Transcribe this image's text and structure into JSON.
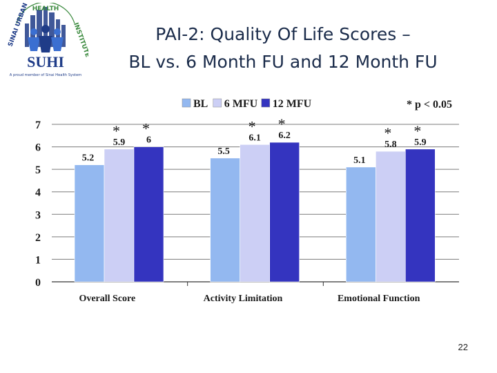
{
  "slide": {
    "title_line1": "PAI-2: Quality Of Life Scores –",
    "title_line2": "BL vs. 6 Month FU and 12 Month FU",
    "page_number": "22"
  },
  "logo": {
    "arc_text_left": "SINAI URBAN",
    "arc_text_top": "HEALTH",
    "arc_text_right": "INSTITUTE",
    "wordmark": "SUHI",
    "tagline": "A proud member of Sinai Health System",
    "colors": {
      "navy": "#1f3c88",
      "blue": "#3b6fd1",
      "green": "#3b8a3e"
    }
  },
  "chart_data": {
    "type": "bar",
    "categories": [
      "Overall Score",
      "Activity Limitation",
      "Emotional Function"
    ],
    "series": [
      {
        "name": "BL",
        "values": [
          5.2,
          5.5,
          5.1
        ],
        "labels": [
          "5.2",
          "5.5",
          "5.1"
        ],
        "color": "#93b8f0"
      },
      {
        "name": "6 MFU",
        "values": [
          5.9,
          6.1,
          5.8
        ],
        "labels": [
          "5.9",
          "6.1",
          "5.8"
        ],
        "color": "#cccff5"
      },
      {
        "name": "12 MFU",
        "values": [
          6,
          6.2,
          5.9
        ],
        "labels": [
          "6",
          "6.2",
          "5.9"
        ],
        "color": "#3434bf"
      }
    ],
    "significance": [
      [
        false,
        true,
        true
      ],
      [
        false,
        true,
        true
      ],
      [
        false,
        true,
        true
      ]
    ],
    "marker": "*",
    "significance_note": "* p < 0.05",
    "yticks": [
      "0",
      "1",
      "2",
      "3",
      "4",
      "5",
      "6",
      "7"
    ],
    "ylim": [
      0,
      7
    ],
    "grid": true,
    "legend_position": "top-center",
    "title": "",
    "xlabel": "",
    "ylabel": ""
  }
}
